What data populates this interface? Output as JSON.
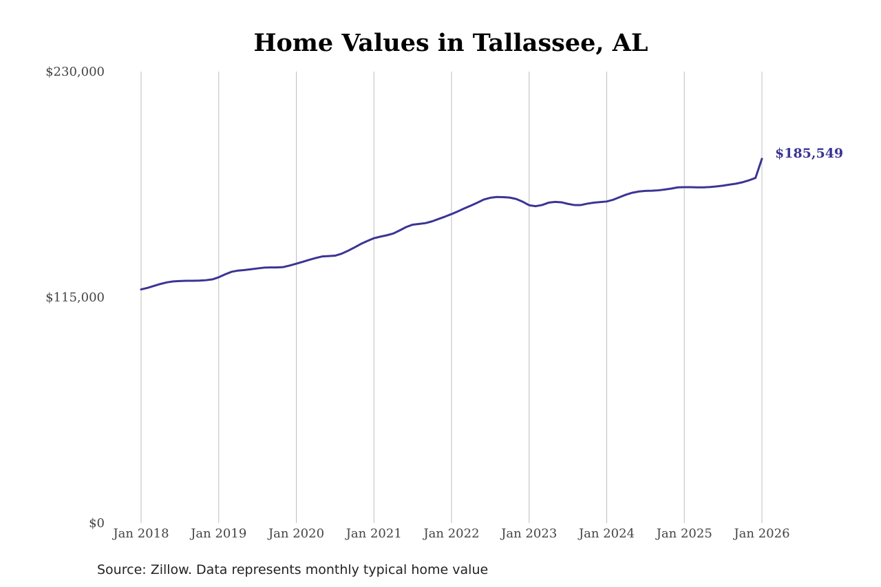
{
  "chart_data": {
    "type": "line",
    "title": "Home Values in Tallassee, AL",
    "xlabel": "",
    "ylabel": "",
    "source": "Source: Zillow. Data represents monthly typical home value",
    "x_ticks": [
      "Jan 2018",
      "Jan 2019",
      "Jan 2020",
      "Jan 2021",
      "Jan 2022",
      "Jan 2023",
      "Jan 2024",
      "Jan 2025",
      "Jan 2026"
    ],
    "y_ticks": [
      "$0",
      "$115,000",
      "$230,000"
    ],
    "y_tick_values": [
      0,
      115000,
      230000
    ],
    "ylim": [
      0,
      230000
    ],
    "xlim": [
      "2018-01",
      "2026-01"
    ],
    "grid": "vertical",
    "end_label": "$185,549",
    "series": [
      {
        "color": "#3b3494",
        "x": [
          "2018-01",
          "2018-02",
          "2018-03",
          "2018-04",
          "2018-05",
          "2018-06",
          "2018-07",
          "2018-08",
          "2018-09",
          "2018-10",
          "2018-11",
          "2018-12",
          "2019-01",
          "2019-02",
          "2019-03",
          "2019-04",
          "2019-05",
          "2019-06",
          "2019-07",
          "2019-08",
          "2019-09",
          "2019-10",
          "2019-11",
          "2019-12",
          "2020-01",
          "2020-02",
          "2020-03",
          "2020-04",
          "2020-05",
          "2020-06",
          "2020-07",
          "2020-08",
          "2020-09",
          "2020-10",
          "2020-11",
          "2020-12",
          "2021-01",
          "2021-02",
          "2021-03",
          "2021-04",
          "2021-05",
          "2021-06",
          "2021-07",
          "2021-08",
          "2021-09",
          "2021-10",
          "2021-11",
          "2021-12",
          "2022-01",
          "2022-02",
          "2022-03",
          "2022-04",
          "2022-05",
          "2022-06",
          "2022-07",
          "2022-08",
          "2022-09",
          "2022-10",
          "2022-11",
          "2022-12",
          "2023-01",
          "2023-02",
          "2023-03",
          "2023-04",
          "2023-05",
          "2023-06",
          "2023-07",
          "2023-08",
          "2023-09",
          "2023-10",
          "2023-11",
          "2023-12",
          "2024-01",
          "2024-02",
          "2024-03",
          "2024-04",
          "2024-05",
          "2024-06",
          "2024-07",
          "2024-08",
          "2024-09",
          "2024-10",
          "2024-11",
          "2024-12",
          "2025-01",
          "2025-02",
          "2025-03",
          "2025-04",
          "2025-05",
          "2025-06",
          "2025-07",
          "2025-08",
          "2025-09",
          "2025-10",
          "2025-11",
          "2025-12",
          "2026-01"
        ],
        "values": [
          119000,
          119800,
          120800,
          121800,
          122600,
          123100,
          123300,
          123400,
          123400,
          123500,
          123700,
          124100,
          125200,
          126700,
          128000,
          128600,
          128900,
          129300,
          129700,
          130100,
          130200,
          130200,
          130400,
          131200,
          132100,
          133100,
          134100,
          135000,
          135800,
          136000,
          136200,
          137200,
          138700,
          140400,
          142200,
          143700,
          145100,
          145900,
          146600,
          147500,
          149100,
          150800,
          152000,
          152400,
          152800,
          153700,
          154900,
          156100,
          157400,
          158800,
          160300,
          161700,
          163200,
          164800,
          165700,
          166100,
          166000,
          165800,
          165100,
          163700,
          161900,
          161400,
          162000,
          163200,
          163600,
          163400,
          162600,
          162000,
          162000,
          162700,
          163200,
          163500,
          163800,
          164700,
          166000,
          167300,
          168300,
          168900,
          169200,
          169300,
          169500,
          169900,
          170400,
          171000,
          171100,
          171100,
          171000,
          171000,
          171200,
          171500,
          171900,
          172400,
          172900,
          173600,
          174600,
          175800,
          185549
        ]
      }
    ]
  }
}
